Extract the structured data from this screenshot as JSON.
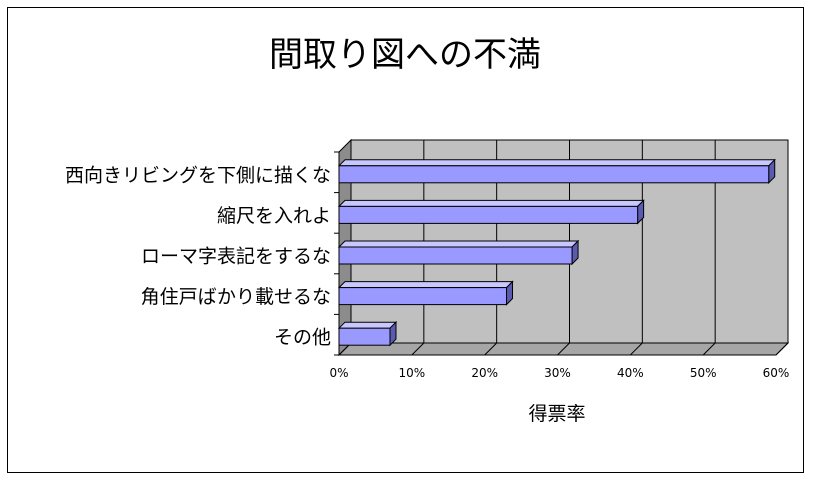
{
  "chart_data": {
    "type": "bar",
    "orientation": "horizontal",
    "title": "間取り図への不満",
    "xlabel": "得票率",
    "ylabel": "",
    "categories": [
      "西向きリビングを下側に描くな",
      "縮尺を入れよ",
      "ローマ字表記をするな",
      "角住戸ばかり載せるな",
      "その他"
    ],
    "values": [
      59,
      41,
      32,
      23,
      7
    ],
    "xlim": [
      0,
      60
    ],
    "x_ticks": [
      "0%",
      "10%",
      "20%",
      "30%",
      "40%",
      "50%",
      "60%"
    ],
    "grid": true,
    "legend": "none",
    "three_d": true
  },
  "colors": {
    "bar_front": "#9999ff",
    "bar_top": "#c8c8ff",
    "bar_side": "#5a5ab0",
    "plot_back": "#c0c0c0",
    "plot_floor": "#a6a6a6",
    "plot_wall": "#8c8c8c"
  }
}
